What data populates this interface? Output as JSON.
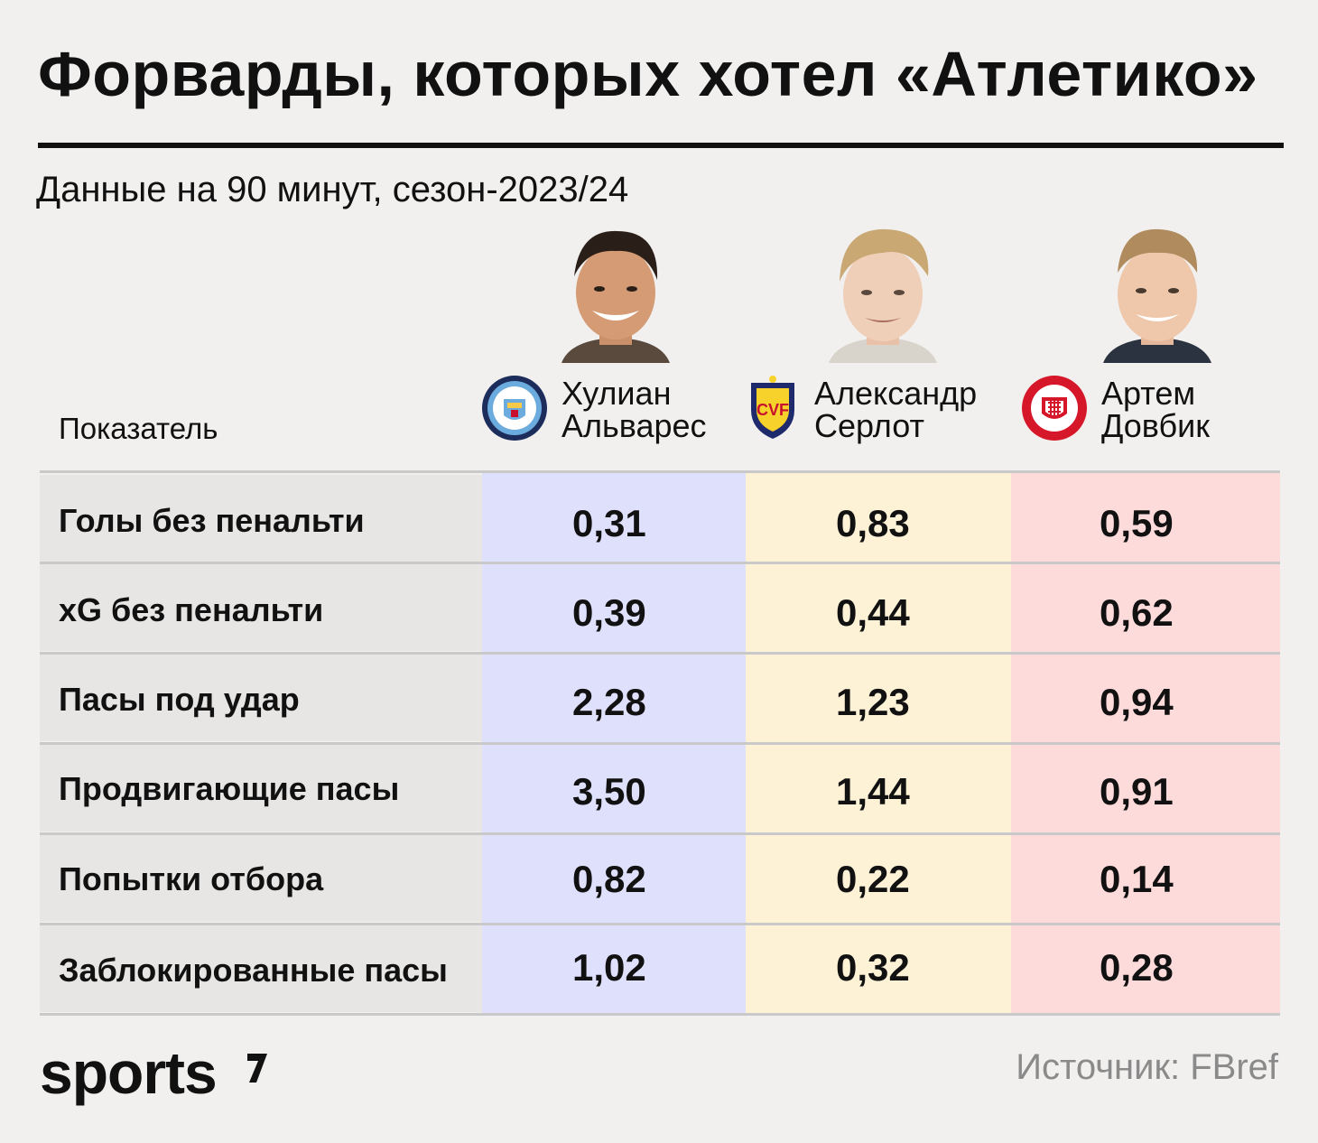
{
  "title": "Форварды, которых хотел «Атлетико»",
  "subtitle": "Данные на 90 минут, сезон-2023/24",
  "header_label": "Показатель",
  "source": "Источник: FBref",
  "logo_text": "sports",
  "chart_data": {
    "type": "table",
    "columns": [
      {
        "player": "Хулиан\nАльварес",
        "club_icon": "manchester-city-crest-icon",
        "color": "#dfe1fc"
      },
      {
        "player": "Александр\nСерлот",
        "club_icon": "villarreal-crest-icon",
        "color": "#fdf1d6"
      },
      {
        "player": "Артем\nДовбик",
        "club_icon": "girona-crest-icon",
        "color": "#fddbdb"
      }
    ],
    "rows": [
      {
        "metric": "Голы без пенальти",
        "values": [
          "0,31",
          "0,83",
          "0,59"
        ]
      },
      {
        "metric": "xG без пенальти",
        "values": [
          "0,39",
          "0,44",
          "0,62"
        ]
      },
      {
        "metric": "Пасы под удар",
        "values": [
          "2,28",
          "1,23",
          "0,94"
        ]
      },
      {
        "metric": "Продвигающие пасы",
        "values": [
          "3,50",
          "1,44",
          "0,91"
        ]
      },
      {
        "metric": "Попытки отбора",
        "values": [
          "0,82",
          "0,22",
          "0,14"
        ]
      },
      {
        "metric": "Заблокированные пасы",
        "values": [
          "1,02",
          "0,32",
          "0,28"
        ]
      }
    ]
  }
}
